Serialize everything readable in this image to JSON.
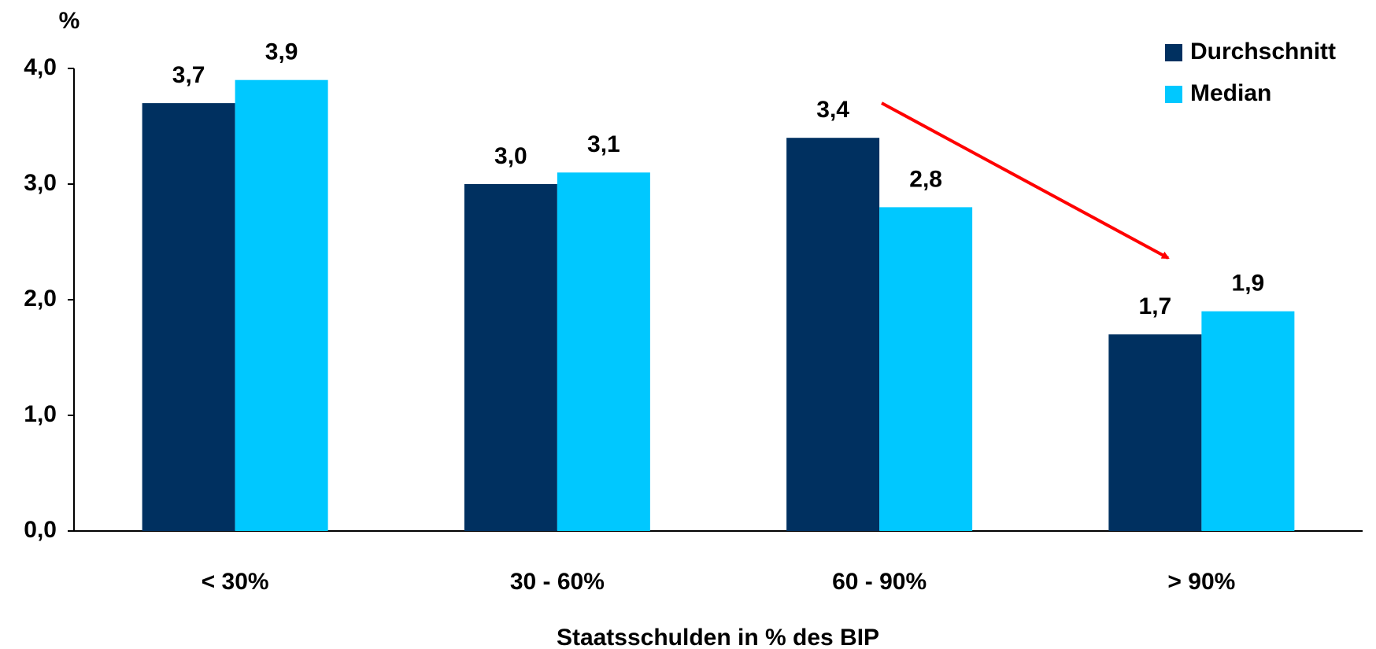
{
  "chart_data": {
    "type": "bar",
    "y_label": "%",
    "x_label": "Staatsschulden in % des BIP",
    "categories": [
      "< 30%",
      "30 - 60%",
      "60 - 90%",
      "> 90%"
    ],
    "series": [
      {
        "name": "Durchschnitt",
        "color": "#003060",
        "values": [
          3.7,
          3.0,
          3.4,
          1.7
        ],
        "value_labels": [
          "3,7",
          "3,0",
          "3,4",
          "1,7"
        ]
      },
      {
        "name": "Median",
        "color": "#00c8ff",
        "values": [
          3.9,
          3.1,
          2.8,
          1.9
        ],
        "value_labels": [
          "3,9",
          "3,1",
          "2,8",
          "1,9"
        ]
      }
    ],
    "ylim": [
      0,
      4
    ],
    "yticks": [
      {
        "value": 0,
        "label": "0,0"
      },
      {
        "value": 1,
        "label": "1,0"
      },
      {
        "value": 2,
        "label": "2,0"
      },
      {
        "value": 3,
        "label": "3,0"
      },
      {
        "value": 4,
        "label": "4,0"
      }
    ],
    "grid": false,
    "legend": "top-right"
  }
}
